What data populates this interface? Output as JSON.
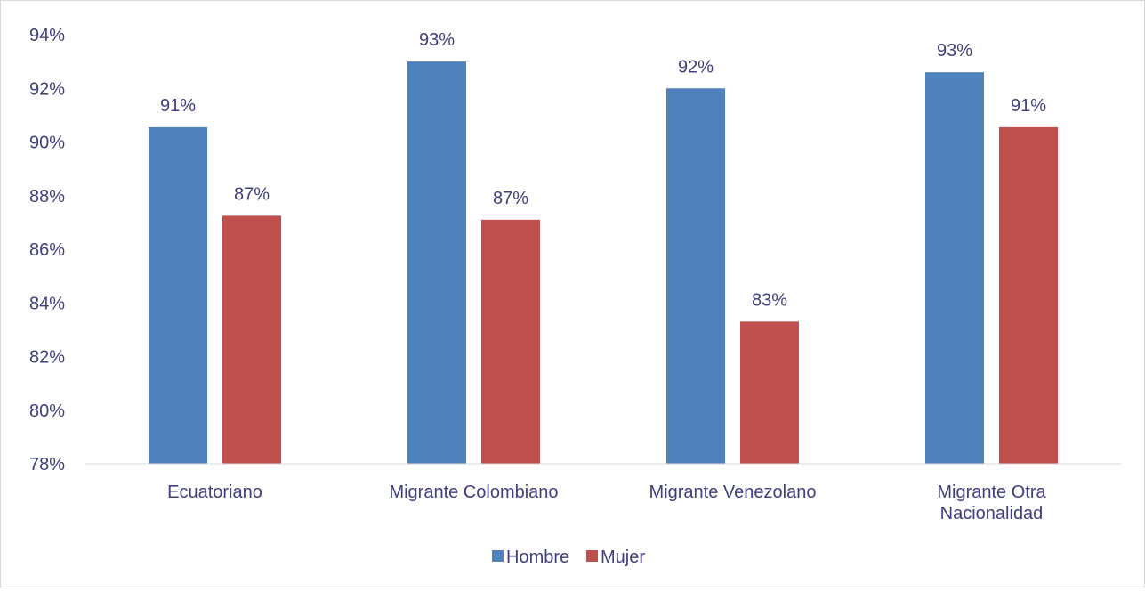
{
  "chart_data": {
    "type": "bar",
    "categories": [
      [
        "Ecuatoriano"
      ],
      [
        "Migrante Colombiano"
      ],
      [
        "Migrante Venezolano"
      ],
      [
        "Migrante Otra",
        "Nacionalidad"
      ]
    ],
    "series": [
      {
        "name": "Hombre",
        "color": "#4f81bd",
        "values": [
          90.55,
          93.0,
          92.0,
          92.6
        ],
        "labels": [
          "91%",
          "93%",
          "92%",
          "93%"
        ]
      },
      {
        "name": "Mujer",
        "color": "#c0504d",
        "values": [
          87.25,
          87.1,
          83.3,
          90.55
        ],
        "labels": [
          "87%",
          "87%",
          "83%",
          "91%"
        ]
      }
    ],
    "ylim": [
      78,
      94
    ],
    "yticks": [
      78,
      80,
      82,
      84,
      86,
      88,
      90,
      92,
      94
    ],
    "ytick_labels": [
      "78%",
      "80%",
      "82%",
      "84%",
      "86%",
      "88%",
      "90%",
      "92%",
      "94%"
    ],
    "title": "",
    "xlabel": "",
    "ylabel": "",
    "grid": false,
    "legend_position": "bottom"
  }
}
